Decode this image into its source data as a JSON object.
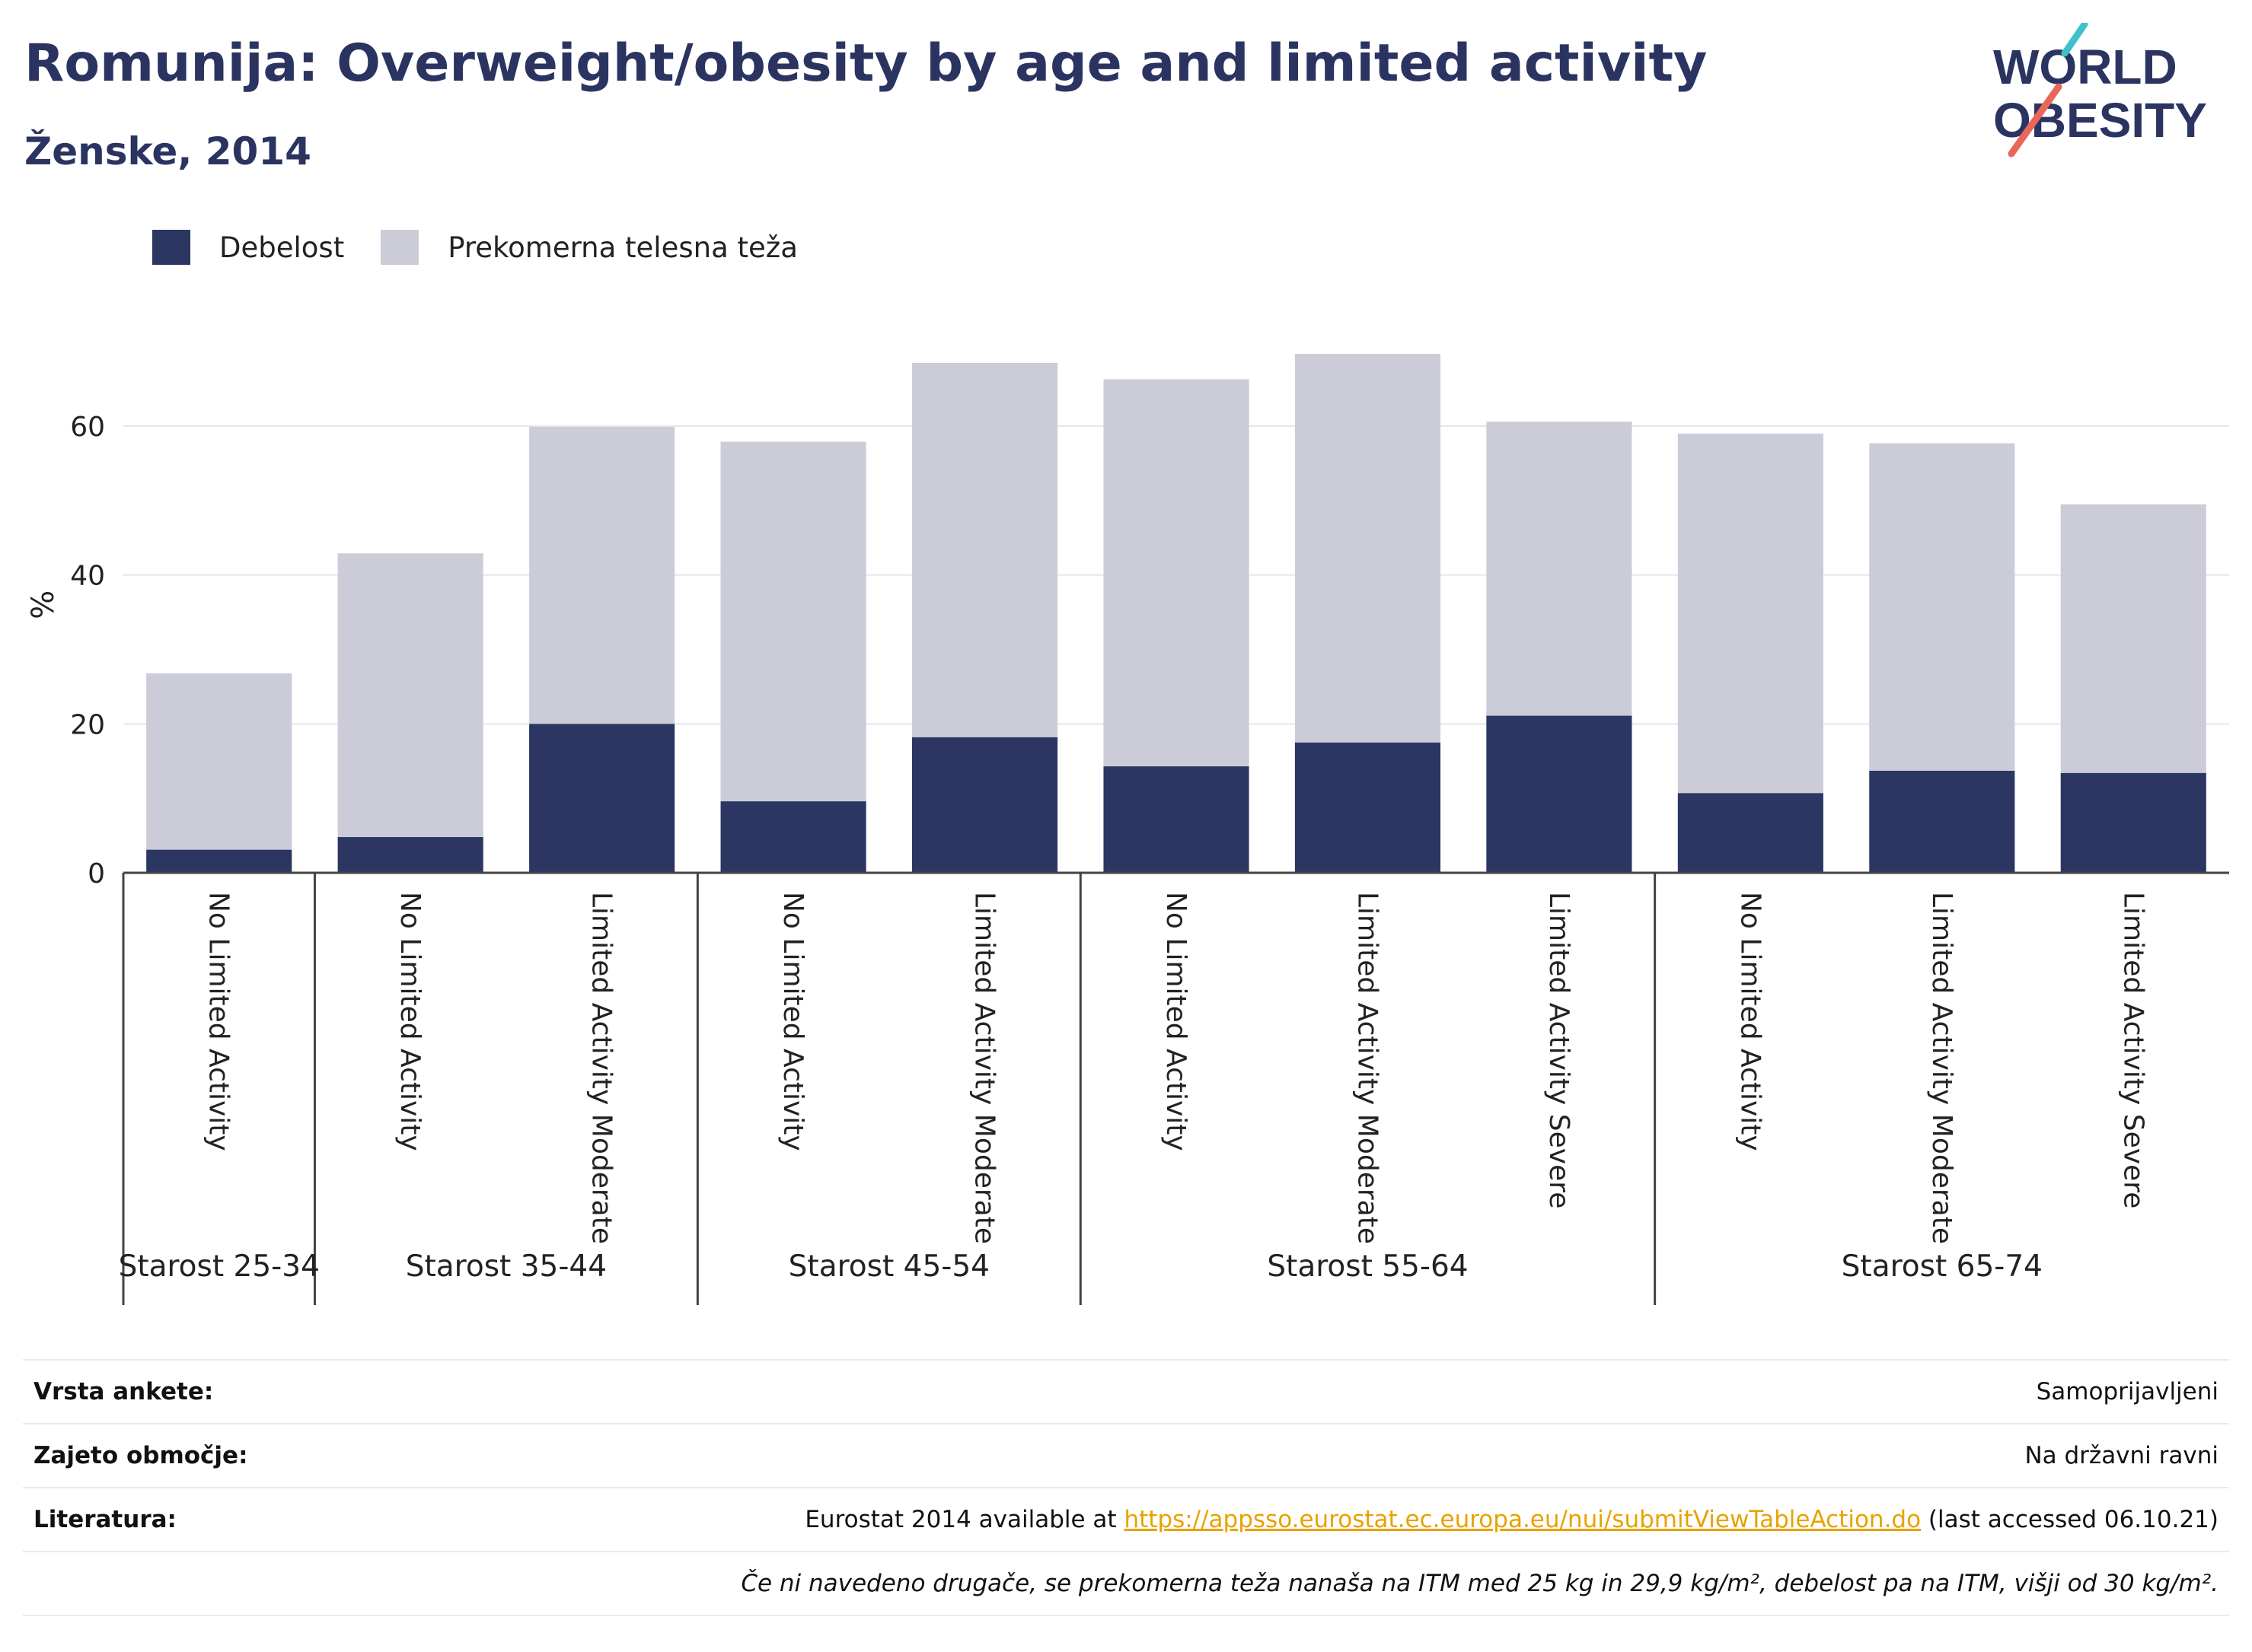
{
  "header": {
    "title": "Romunija: Overweight/obesity by age and limited activity",
    "subtitle": "Ženske, 2014"
  },
  "logo": {
    "line1": "WORLD",
    "line2": "OBESITY",
    "accent_colors": [
      "#3fc1c9",
      "#e8665a"
    ]
  },
  "legend": [
    {
      "label": "Debelost",
      "color": "#2b3663"
    },
    {
      "label": "Prekomerna telesna teža",
      "color": "#cbccd8"
    }
  ],
  "chart_data": {
    "type": "bar",
    "stacked": true,
    "ylabel": "%",
    "ylim": [
      0,
      72
    ],
    "yticks": [
      0,
      20,
      40,
      60
    ],
    "grid": true,
    "legend_position": "top-left",
    "categories": [
      "No Limited Activity",
      "No Limited Activity",
      "Limited Activity Moderate",
      "No Limited Activity",
      "Limited Activity Moderate",
      "No Limited Activity",
      "Limited Activity Moderate",
      "Limited Activity Severe",
      "No Limited Activity",
      "Limited Activity Moderate",
      "Limited Activity Severe"
    ],
    "groups": [
      {
        "label": "Starost 25-34",
        "count": 1
      },
      {
        "label": "Starost 35-44",
        "count": 2
      },
      {
        "label": "Starost 45-54",
        "count": 2
      },
      {
        "label": "Starost 55-64",
        "count": 3
      },
      {
        "label": "Starost 65-74",
        "count": 3
      }
    ],
    "series": [
      {
        "name": "Debelost",
        "color": "#2b3663",
        "values": [
          3.1,
          4.8,
          20.0,
          9.6,
          18.2,
          14.3,
          17.5,
          21.1,
          10.7,
          13.7,
          13.4
        ]
      },
      {
        "name": "Prekomerna telesna teža",
        "color": "#cbccd8",
        "values": [
          23.7,
          38.1,
          39.9,
          48.3,
          50.3,
          52.0,
          52.2,
          39.5,
          48.3,
          44.0,
          36.1
        ]
      }
    ]
  },
  "info": {
    "survey_label": "Vrsta ankete:",
    "survey_value": "Samoprijavljeni",
    "coverage_label": "Zajeto območje:",
    "coverage_value": "Na državni ravni",
    "refs_label": "Literatura:",
    "refs_prefix": "Eurostat 2014 available at ",
    "refs_link": "https://appsso.eurostat.ec.europa.eu/nui/submitViewTableAction.do",
    "refs_suffix": " (last accessed 06.10.21)",
    "note": "Če ni navedeno drugače, se prekomerna teža nanaša na ITM med 25 kg in 29,9 kg/m², debelost pa na ITM, višji od 30 kg/m²."
  }
}
